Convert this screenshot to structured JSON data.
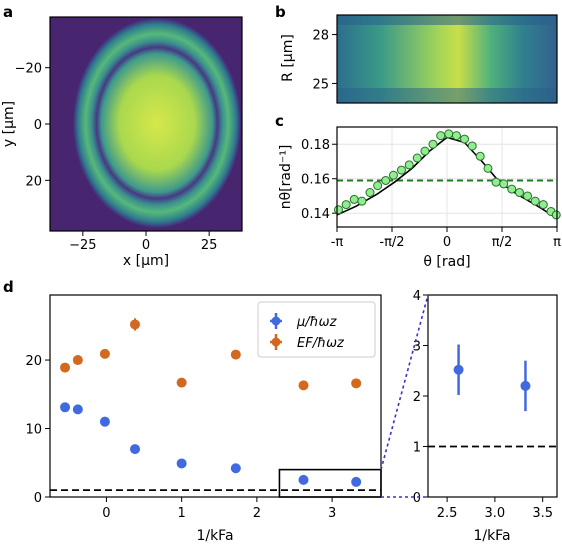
{
  "panel_letters": {
    "a": "a",
    "b": "b",
    "c": "c",
    "d": "d"
  },
  "colors": {
    "blue": "#4169e1",
    "orange": "#d2691e",
    "green": "#1a7f1a",
    "green_fill": "#90ee90",
    "dashed_black": "#000000",
    "zoom_line": "#3b30c8",
    "image_dark": "#46206f",
    "image_mid": "#2a8c8c",
    "image_bright": "#c8e042"
  },
  "chart_data": [
    {
      "id": "a",
      "type": "image",
      "description_of_axes": "absorption image",
      "xlabel": "x [μm]",
      "ylabel": "y [μm]",
      "xticks": [
        "−25",
        "0",
        "25"
      ],
      "yticks": [
        "−20",
        "0",
        "20"
      ],
      "xlim": [
        -38,
        38
      ],
      "ylim": [
        38,
        -38
      ]
    },
    {
      "id": "b",
      "type": "heatmap",
      "ylabel": "R [μm]",
      "yticks": [
        "28",
        "25"
      ],
      "ylim": [
        23.8,
        29.2
      ]
    },
    {
      "id": "c",
      "type": "line",
      "xlabel": "θ [rad]",
      "ylabel": "nθ[rad⁻¹]",
      "xticks": [
        "-π",
        "-π/2",
        "0",
        "π/2",
        "π"
      ],
      "yticks": [
        "0.18",
        "0.16",
        "0.14"
      ],
      "xlim": [
        -3.1416,
        3.1416
      ],
      "ylim": [
        0.132,
        0.19
      ],
      "dashed_level": 0.159,
      "points": {
        "x": [
          -3.1,
          -2.88,
          -2.65,
          -2.43,
          -2.2,
          -1.98,
          -1.75,
          -1.53,
          -1.3,
          -1.08,
          -0.85,
          -0.63,
          -0.4,
          -0.18,
          0.05,
          0.27,
          0.5,
          0.72,
          0.95,
          1.17,
          1.4,
          1.62,
          1.85,
          2.07,
          2.3,
          2.52,
          2.75,
          2.97,
          3.12
        ],
        "y": [
          0.142,
          0.145,
          0.148,
          0.147,
          0.152,
          0.156,
          0.159,
          0.162,
          0.165,
          0.168,
          0.172,
          0.176,
          0.18,
          0.185,
          0.186,
          0.185,
          0.183,
          0.179,
          0.173,
          0.166,
          0.158,
          0.157,
          0.154,
          0.152,
          0.15,
          0.147,
          0.145,
          0.141,
          0.139
        ]
      },
      "fit": {
        "x": [
          -3.1416,
          -2.6,
          -2.0,
          -1.5,
          -1.0,
          -0.5,
          0.0,
          0.5,
          1.0,
          1.5,
          2.0,
          2.6,
          3.1416
        ],
        "y": [
          0.139,
          0.144,
          0.151,
          0.158,
          0.166,
          0.176,
          0.184,
          0.181,
          0.17,
          0.158,
          0.151,
          0.144,
          0.137
        ]
      }
    },
    {
      "id": "d",
      "type": "scatter",
      "xlabel": "1/kFa",
      "xticks": [
        "0",
        "1",
        "2",
        "3"
      ],
      "yticks": [
        "0",
        "10",
        "20"
      ],
      "xlim": [
        -0.75,
        3.65
      ],
      "ylim": [
        0,
        29.5
      ],
      "dashed_level": 1,
      "series": [
        {
          "name": "μ/ħωz",
          "x": [
            -0.55,
            -0.38,
            -0.02,
            0.38,
            1.0,
            1.72,
            2.62,
            3.32
          ],
          "y": [
            13.1,
            12.8,
            11.0,
            7.0,
            4.9,
            4.2,
            2.5,
            2.2
          ]
        },
        {
          "name": "EF/ħωz",
          "x": [
            -0.55,
            -0.38,
            -0.02,
            0.38,
            1.0,
            1.72,
            2.62,
            3.32
          ],
          "y": [
            18.9,
            20.0,
            20.9,
            25.2,
            16.7,
            20.8,
            16.3,
            16.6
          ],
          "err": [
            0,
            0,
            0,
            0.9,
            0,
            0,
            0,
            0
          ]
        }
      ],
      "inset_box": {
        "x": [
          2.3,
          3.65
        ],
        "y": [
          0,
          4
        ]
      }
    },
    {
      "id": "d_zoom",
      "type": "scatter",
      "xlabel": "1/kFa",
      "xticks": [
        "2.5",
        "3.0",
        "3.5"
      ],
      "yticks": [
        "0",
        "1",
        "2",
        "3",
        "4"
      ],
      "xlim": [
        2.3,
        3.65
      ],
      "ylim": [
        0,
        4
      ],
      "dashed_level": 1,
      "series": [
        {
          "name": "μ/ħωz",
          "x": [
            2.62,
            3.32
          ],
          "y": [
            2.52,
            2.2
          ],
          "err": [
            0.5,
            0.5
          ]
        }
      ]
    }
  ]
}
